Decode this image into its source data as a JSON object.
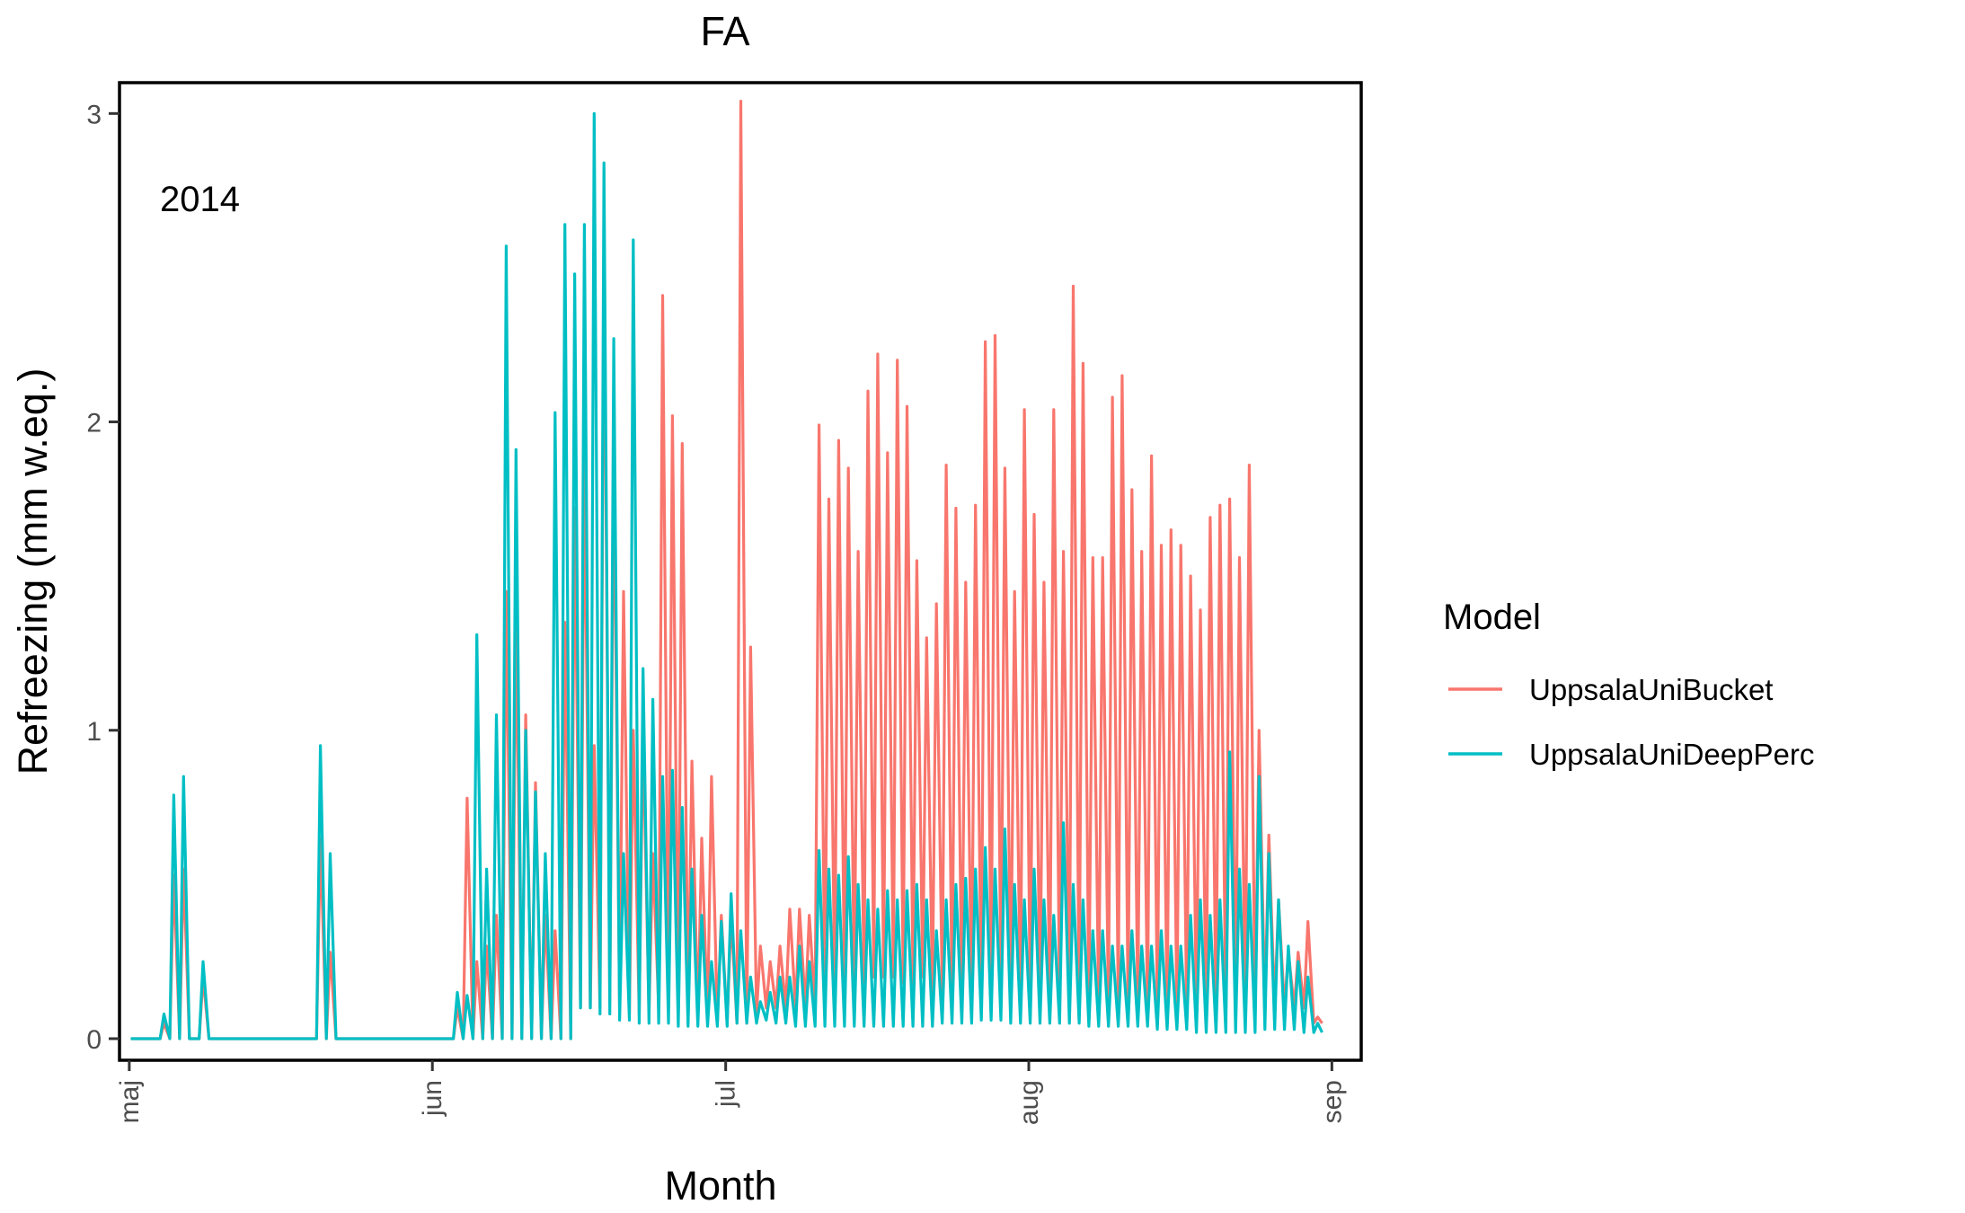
{
  "chart_data": {
    "type": "line",
    "title": "FA",
    "xlabel": "Month",
    "ylabel": "Refreezing (mm w.eq.)",
    "annotation": "2014",
    "x_ticks": [
      {
        "date": "2014-05-01",
        "label": "maj"
      },
      {
        "date": "2014-06-01",
        "label": "jun"
      },
      {
        "date": "2014-07-01",
        "label": "jul"
      },
      {
        "date": "2014-08-01",
        "label": "aug"
      },
      {
        "date": "2014-09-01",
        "label": "sep"
      }
    ],
    "y_ticks": [
      0,
      1,
      2,
      3
    ],
    "xlim": [
      "2014-04-30",
      "2014-09-04"
    ],
    "ylim": [
      -0.07,
      3.1
    ],
    "grid": false,
    "legend": {
      "title": "Model",
      "position": "right"
    },
    "series": [
      {
        "name": "UppsalaUniBucket",
        "color": "#F8766D",
        "daily_peaks": [
          0,
          0,
          0,
          0.05,
          0.53,
          0.55,
          0,
          0.2,
          0,
          0,
          0,
          0,
          0,
          0,
          0,
          0,
          0,
          0,
          0,
          0.65,
          0.28,
          0,
          0,
          0,
          0,
          0,
          0,
          0,
          0,
          0,
          0,
          0,
          0,
          0.1,
          0.78,
          0.25,
          0.3,
          0.4,
          1.45,
          1.38,
          1.05,
          0.83,
          0.4,
          0.35,
          1.35,
          1.72,
          1.9,
          0.95,
          2.6,
          1.93,
          1.45,
          1.0,
          1.0,
          0.6,
          2.41,
          2.02,
          1.93,
          0.9,
          0.65,
          0.85,
          0.4,
          0.4,
          3.04,
          1.27,
          0.3,
          0.25,
          0.3,
          0.42,
          0.42,
          0.4,
          1.99,
          1.75,
          1.94,
          1.85,
          1.58,
          2.1,
          2.22,
          1.9,
          2.2,
          2.05,
          1.55,
          1.3,
          1.41,
          1.86,
          1.72,
          1.48,
          1.73,
          2.26,
          2.28,
          1.85,
          1.45,
          2.04,
          1.7,
          1.48,
          2.04,
          1.58,
          2.44,
          2.19,
          1.56,
          1.56,
          2.08,
          2.15,
          1.78,
          1.58,
          1.89,
          1.6,
          1.65,
          1.6,
          1.5,
          1.39,
          1.69,
          1.73,
          1.75,
          1.56,
          1.86,
          1.0,
          0.66,
          0.45,
          0.28,
          0.28,
          0.38,
          0.07
        ],
        "daily_troughs": [
          0,
          0,
          0,
          0,
          0,
          0,
          0,
          0,
          0,
          0,
          0,
          0,
          0,
          0,
          0,
          0,
          0,
          0,
          0,
          0,
          0,
          0,
          0,
          0,
          0,
          0,
          0,
          0,
          0,
          0,
          0,
          0,
          0,
          0,
          0,
          0,
          0,
          0,
          0,
          0,
          0,
          0,
          0,
          0,
          0,
          0,
          0.1,
          0.1,
          0.1,
          0.12,
          0.1,
          0.08,
          0.08,
          0.08,
          0.1,
          0.1,
          0.08,
          0.08,
          0.06,
          0.06,
          0.05,
          0.05,
          0.05,
          0.05,
          0.08,
          0.1,
          0.1,
          0.1,
          0.1,
          0.1,
          0.1,
          0.12,
          0.15,
          0.15,
          0.15,
          0.18,
          0.2,
          0.2,
          0.2,
          0.18,
          0.18,
          0.2,
          0.15,
          0.15,
          0.12,
          0.12,
          0.12,
          0.12,
          0.15,
          0.15,
          0.12,
          0.1,
          0.1,
          0.1,
          0.12,
          0.12,
          0.12,
          0.1,
          0.1,
          0.1,
          0.1,
          0.1,
          0.1,
          0.1,
          0.08,
          0.08,
          0.08,
          0.08,
          0.08,
          0.08,
          0.08,
          0.08,
          0.08,
          0.08,
          0.08,
          0.08,
          0.1,
          0.1,
          0.1,
          0.1,
          0.1,
          0.05
        ]
      },
      {
        "name": "UppsalaUniDeepPerc",
        "color": "#00BFC4",
        "daily_peaks": [
          0,
          0,
          0,
          0.08,
          0.79,
          0.85,
          0,
          0.25,
          0,
          0,
          0,
          0,
          0,
          0,
          0,
          0,
          0,
          0,
          0,
          0.95,
          0.6,
          0,
          0,
          0,
          0,
          0,
          0,
          0,
          0,
          0,
          0,
          0,
          0,
          0.15,
          0.14,
          1.31,
          0.55,
          1.05,
          2.57,
          1.91,
          1.0,
          0.8,
          0.6,
          2.03,
          2.64,
          2.48,
          2.64,
          3.0,
          2.84,
          2.27,
          0.6,
          2.59,
          1.2,
          1.1,
          0.85,
          0.87,
          0.75,
          0.55,
          0.4,
          0.25,
          0.38,
          0.47,
          0.35,
          0.2,
          0.12,
          0.15,
          0.2,
          0.2,
          0.3,
          0.25,
          0.61,
          0.55,
          0.53,
          0.59,
          0.5,
          0.45,
          0.42,
          0.48,
          0.45,
          0.48,
          0.5,
          0.45,
          0.35,
          0.45,
          0.5,
          0.52,
          0.55,
          0.62,
          0.55,
          0.68,
          0.5,
          0.45,
          0.55,
          0.45,
          0.4,
          0.7,
          0.5,
          0.45,
          0.35,
          0.35,
          0.3,
          0.3,
          0.35,
          0.3,
          0.3,
          0.35,
          0.3,
          0.3,
          0.4,
          0.45,
          0.4,
          0.45,
          0.93,
          0.55,
          0.5,
          0.85,
          0.6,
          0.45,
          0.3,
          0.25,
          0.2,
          0.05
        ],
        "daily_troughs": [
          0,
          0,
          0,
          0,
          0,
          0,
          0,
          0,
          0,
          0,
          0,
          0,
          0,
          0,
          0,
          0,
          0,
          0,
          0,
          0,
          0,
          0,
          0,
          0,
          0,
          0,
          0,
          0,
          0,
          0,
          0,
          0,
          0,
          0,
          0,
          0,
          0,
          0,
          0,
          0,
          0,
          0,
          0,
          0,
          0,
          0,
          0.1,
          0.1,
          0.08,
          0.08,
          0.06,
          0.06,
          0.05,
          0.05,
          0.05,
          0.05,
          0.04,
          0.04,
          0.04,
          0.04,
          0.04,
          0.04,
          0.05,
          0.05,
          0.05,
          0.06,
          0.05,
          0.05,
          0.04,
          0.04,
          0.04,
          0.04,
          0.04,
          0.04,
          0.04,
          0.04,
          0.04,
          0.04,
          0.04,
          0.04,
          0.04,
          0.04,
          0.04,
          0.05,
          0.05,
          0.05,
          0.05,
          0.06,
          0.06,
          0.06,
          0.05,
          0.05,
          0.05,
          0.05,
          0.05,
          0.05,
          0.05,
          0.05,
          0.04,
          0.04,
          0.04,
          0.04,
          0.04,
          0.04,
          0.04,
          0.03,
          0.03,
          0.03,
          0.03,
          0.02,
          0.02,
          0.02,
          0.02,
          0.02,
          0.02,
          0.02,
          0.03,
          0.03,
          0.03,
          0.03,
          0.02,
          0.02
        ]
      }
    ]
  }
}
